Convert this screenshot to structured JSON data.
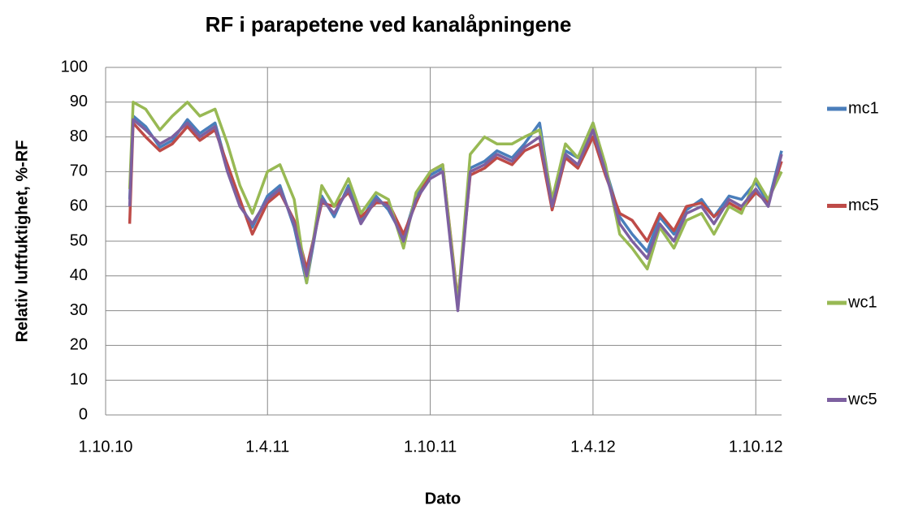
{
  "chart_data": {
    "type": "line",
    "title": "RF i parapetene ved kanalåpningene",
    "xlabel": "Dato",
    "ylabel": "Relativ luftfuktighet, %-RF",
    "x": [
      "2010-10-28",
      "2010-11-01",
      "2010-11-15",
      "2010-12-01",
      "2010-12-15",
      "2011-01-01",
      "2011-01-15",
      "2011-02-01",
      "2011-02-15",
      "2011-03-01",
      "2011-03-15",
      "2011-04-01",
      "2011-04-15",
      "2011-05-01",
      "2011-05-15",
      "2011-06-01",
      "2011-06-15",
      "2011-07-01",
      "2011-07-15",
      "2011-08-01",
      "2011-08-15",
      "2011-09-01",
      "2011-09-15",
      "2011-10-01",
      "2011-10-15",
      "2011-11-01",
      "2011-11-15",
      "2011-12-01",
      "2011-12-15",
      "2012-01-01",
      "2012-01-15",
      "2012-02-01",
      "2012-02-15",
      "2012-03-01",
      "2012-03-15",
      "2012-04-01",
      "2012-04-15",
      "2012-05-01",
      "2012-05-15",
      "2012-06-01",
      "2012-06-15",
      "2012-07-01",
      "2012-07-15",
      "2012-08-01",
      "2012-08-15",
      "2012-09-01",
      "2012-09-15",
      "2012-10-01",
      "2012-10-15",
      "2012-10-30"
    ],
    "series": [
      {
        "name": "mc1",
        "color": "#4a7ebb",
        "values": [
          62,
          86,
          83,
          77,
          79,
          85,
          81,
          84,
          71,
          61,
          54,
          63,
          66,
          54,
          38,
          63,
          57,
          66,
          56,
          63,
          59,
          51,
          63,
          69,
          71,
          31,
          71,
          73,
          76,
          74,
          78,
          84,
          61,
          76,
          74,
          84,
          71,
          57,
          52,
          47,
          57,
          52,
          59,
          62,
          57,
          63,
          62,
          67,
          61,
          76
        ]
      },
      {
        "name": "mc5",
        "color": "#be4b48",
        "values": [
          55,
          84,
          80,
          76,
          78,
          83,
          79,
          82,
          72,
          62,
          52,
          61,
          64,
          56,
          42,
          61,
          60,
          64,
          57,
          61,
          61,
          52,
          61,
          70,
          72,
          33,
          69,
          71,
          74,
          72,
          76,
          78,
          59,
          74,
          71,
          80,
          69,
          58,
          56,
          50,
          58,
          53,
          60,
          61,
          57,
          61,
          59,
          64,
          61,
          73
        ]
      },
      {
        "name": "wc1",
        "color": "#98b954",
        "values": [
          65,
          90,
          88,
          82,
          86,
          90,
          86,
          88,
          78,
          66,
          58,
          70,
          72,
          62,
          38,
          66,
          60,
          68,
          58,
          64,
          62,
          48,
          64,
          70,
          72,
          32,
          75,
          80,
          78,
          78,
          80,
          82,
          62,
          78,
          74,
          84,
          72,
          52,
          48,
          42,
          54,
          48,
          56,
          58,
          52,
          60,
          58,
          68,
          62,
          70
        ]
      },
      {
        "name": "wc5",
        "color": "#7d60a0",
        "values": [
          60,
          85,
          82,
          78,
          80,
          84,
          80,
          83,
          70,
          60,
          55,
          62,
          65,
          55,
          40,
          62,
          58,
          65,
          55,
          62,
          60,
          50,
          62,
          68,
          70,
          30,
          70,
          72,
          75,
          73,
          77,
          80,
          60,
          75,
          72,
          82,
          70,
          55,
          50,
          45,
          55,
          50,
          58,
          60,
          55,
          62,
          60,
          65,
          60,
          75
        ]
      }
    ],
    "xlim": [
      "2010-10-01",
      "2012-10-30"
    ],
    "xticks": [
      {
        "value": "2010-10-01",
        "label": "1.10.10"
      },
      {
        "value": "2011-04-01",
        "label": "1.4.11"
      },
      {
        "value": "2011-10-01",
        "label": "1.10.11"
      },
      {
        "value": "2012-04-01",
        "label": "1.4.12"
      },
      {
        "value": "2012-10-01",
        "label": "1.10.12"
      }
    ],
    "ylim": [
      0,
      100
    ],
    "yticks": [
      0,
      10,
      20,
      30,
      40,
      50,
      60,
      70,
      80,
      90,
      100
    ],
    "grid": true,
    "legend": "right"
  }
}
